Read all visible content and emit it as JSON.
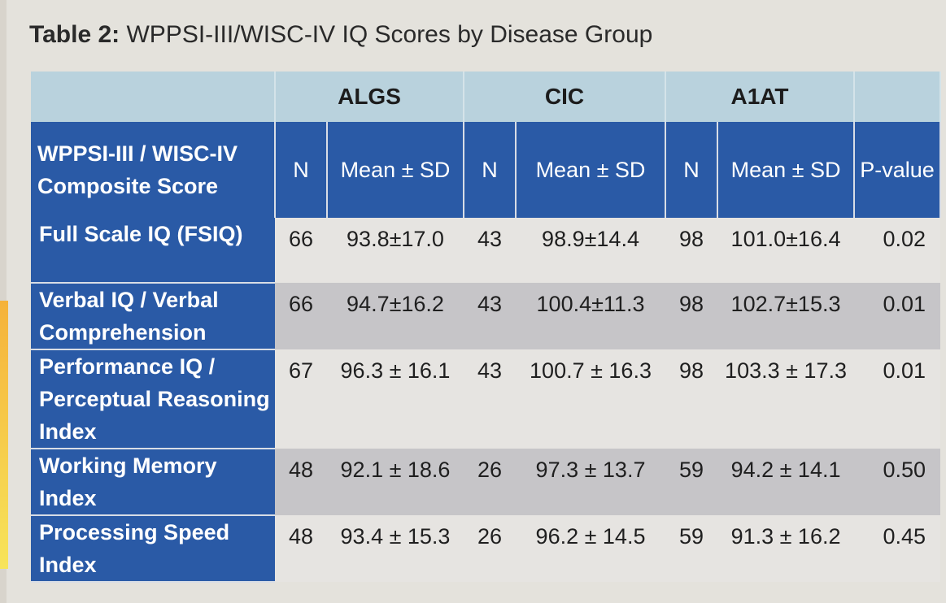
{
  "caption": {
    "prefix": "Table 2:",
    "title": "WPPSI-III/WISC-IV IQ Scores by Disease Group"
  },
  "table": {
    "groups": [
      "",
      "ALGS",
      "CIC",
      "A1AT",
      ""
    ],
    "headers": {
      "score": "WPPSI-III / WISC-IV Composite Score",
      "n": "N",
      "mean_sd_algs": "Mean ± SD",
      "mean_sd_cic": "Mean ± SD",
      "mean_sd_a1at": "Mean ± SD",
      "p_value": "P-value"
    },
    "rows": [
      {
        "label": "Full Scale IQ (FSIQ)",
        "algs_n": "66",
        "algs_mean": "93.8±17.0",
        "cic_n": "43",
        "cic_mean": "98.9±14.4",
        "a1at_n": "98",
        "a1at_mean": "101.0±16.4",
        "p": "0.02"
      },
      {
        "label": "Verbal IQ / Verbal Comprehension",
        "algs_n": "66",
        "algs_mean": "94.7±16.2",
        "cic_n": "43",
        "cic_mean": "100.4±11.3",
        "a1at_n": "98",
        "a1at_mean": "102.7±15.3",
        "p": "0.01"
      },
      {
        "label": "Performance IQ / Perceptual Reasoning Index",
        "algs_n": "67",
        "algs_mean": "96.3 ± 16.1",
        "cic_n": "43",
        "cic_mean": "100.7 ± 16.3",
        "a1at_n": "98",
        "a1at_mean": "103.3 ± 17.3",
        "p": "0.01"
      },
      {
        "label": "Working Memory Index",
        "algs_n": "48",
        "algs_mean": "92.1 ± 18.6",
        "cic_n": "26",
        "cic_mean": "97.3 ± 13.7",
        "a1at_n": "59",
        "a1at_mean": "94.2 ± 14.1",
        "p": "0.50"
      },
      {
        "label": "Processing Speed Index",
        "algs_n": "48",
        "algs_mean": "93.4 ± 15.3",
        "cic_n": "26",
        "cic_mean": "96.2 ± 14.5",
        "a1at_n": "59",
        "a1at_mean": "91.3 ± 16.2",
        "p": "0.45"
      }
    ]
  },
  "colors": {
    "header_blue": "#2a5aa6",
    "group_header": "#b9d2dd",
    "row_light": "#e6e4e1",
    "row_dark": "#c6c5c8"
  }
}
